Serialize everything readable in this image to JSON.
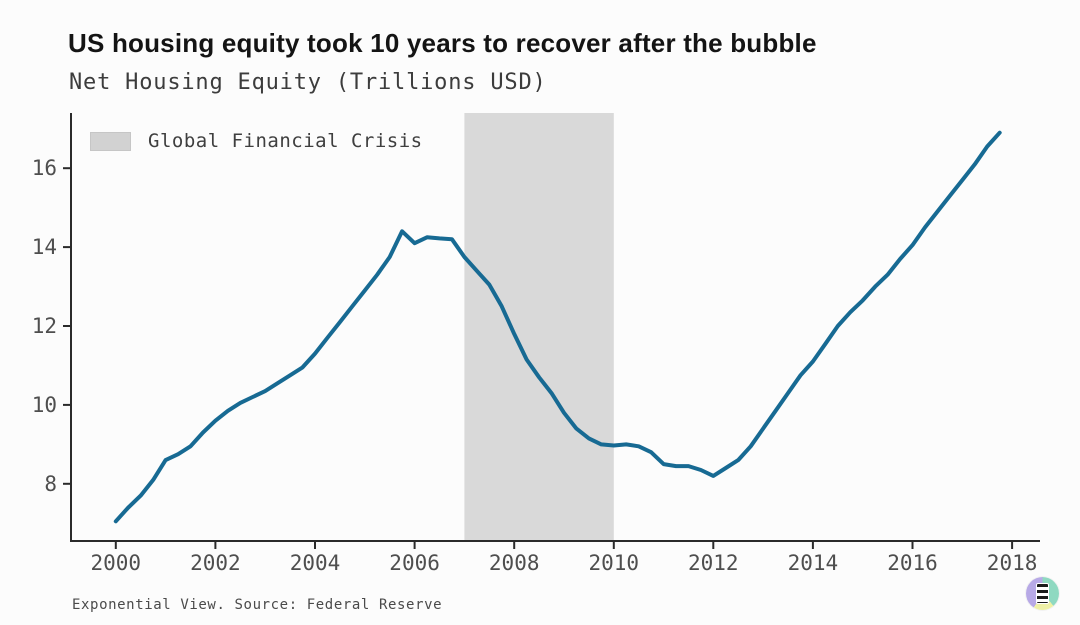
{
  "page": {
    "background": "#fcfcfc"
  },
  "header": {
    "title": "US housing equity took 10 years to recover after the bubble",
    "subtitle": "Net Housing Equity (Trillions USD)"
  },
  "footer": {
    "source": "Exponential View. Source: Federal Reserve",
    "logo_icon": "exponential-view-logo",
    "logo_colors": {
      "green": "#8fd9c1",
      "yellow": "#eef0a6",
      "purple": "#b7a9e6"
    }
  },
  "chart_data": {
    "type": "line",
    "title": "US housing equity took 10 years to recover after the bubble",
    "subtitle": "Net Housing Equity (Trillions USD)",
    "xlabel": "",
    "ylabel": "Net Housing Equity (Trillions USD)",
    "grid": false,
    "xlim": [
      1999.1,
      2018.56
    ],
    "ylim": [
      6.55,
      17.4
    ],
    "x_ticks": [
      2000,
      2002,
      2004,
      2006,
      2008,
      2010,
      2012,
      2014,
      2016,
      2018
    ],
    "y_ticks": [
      8,
      10,
      12,
      14,
      16
    ],
    "axis_color": "#2b2b2b",
    "tick_label_color": "#4e4e4e",
    "band": {
      "label": "Global Financial Crisis",
      "x0": 2007,
      "x1": 2010,
      "color": "#d9d9d9"
    },
    "legend": {
      "position": "top-left",
      "entries": [
        "Global Financial Crisis"
      ]
    },
    "series": [
      {
        "name": "Net Housing Equity",
        "color": "#176a93",
        "width": 4,
        "x": [
          2000.0,
          2000.25,
          2000.5,
          2000.75,
          2001.0,
          2001.25,
          2001.5,
          2001.75,
          2002.0,
          2002.25,
          2002.5,
          2002.75,
          2003.0,
          2003.25,
          2003.5,
          2003.75,
          2004.0,
          2004.25,
          2004.5,
          2004.75,
          2005.0,
          2005.25,
          2005.5,
          2005.75,
          2006.0,
          2006.25,
          2006.5,
          2006.75,
          2007.0,
          2007.25,
          2007.5,
          2007.75,
          2008.0,
          2008.25,
          2008.5,
          2008.75,
          2009.0,
          2009.25,
          2009.5,
          2009.75,
          2010.0,
          2010.25,
          2010.5,
          2010.75,
          2011.0,
          2011.25,
          2011.5,
          2011.75,
          2012.0,
          2012.25,
          2012.5,
          2012.75,
          2013.0,
          2013.25,
          2013.5,
          2013.75,
          2014.0,
          2014.25,
          2014.5,
          2014.75,
          2015.0,
          2015.25,
          2015.5,
          2015.75,
          2016.0,
          2016.25,
          2016.5,
          2016.75,
          2017.0,
          2017.25,
          2017.5,
          2017.75
        ],
        "y": [
          7.05,
          7.4,
          7.7,
          8.1,
          8.6,
          8.75,
          8.95,
          9.3,
          9.6,
          9.85,
          10.05,
          10.2,
          10.35,
          10.55,
          10.75,
          10.95,
          11.3,
          11.7,
          12.1,
          12.5,
          12.9,
          13.3,
          13.75,
          14.4,
          14.1,
          14.25,
          14.22,
          14.2,
          13.75,
          13.4,
          13.05,
          12.5,
          11.8,
          11.15,
          10.7,
          10.3,
          9.8,
          9.4,
          9.15,
          9.0,
          8.97,
          9.0,
          8.95,
          8.8,
          8.5,
          8.45,
          8.45,
          8.35,
          8.2,
          8.4,
          8.6,
          8.95,
          9.4,
          9.85,
          10.3,
          10.75,
          11.1,
          11.55,
          12.0,
          12.35,
          12.65,
          13.0,
          13.3,
          13.7,
          14.05,
          14.5,
          14.9,
          15.3,
          15.7,
          16.1,
          16.55,
          16.9
        ]
      }
    ]
  }
}
